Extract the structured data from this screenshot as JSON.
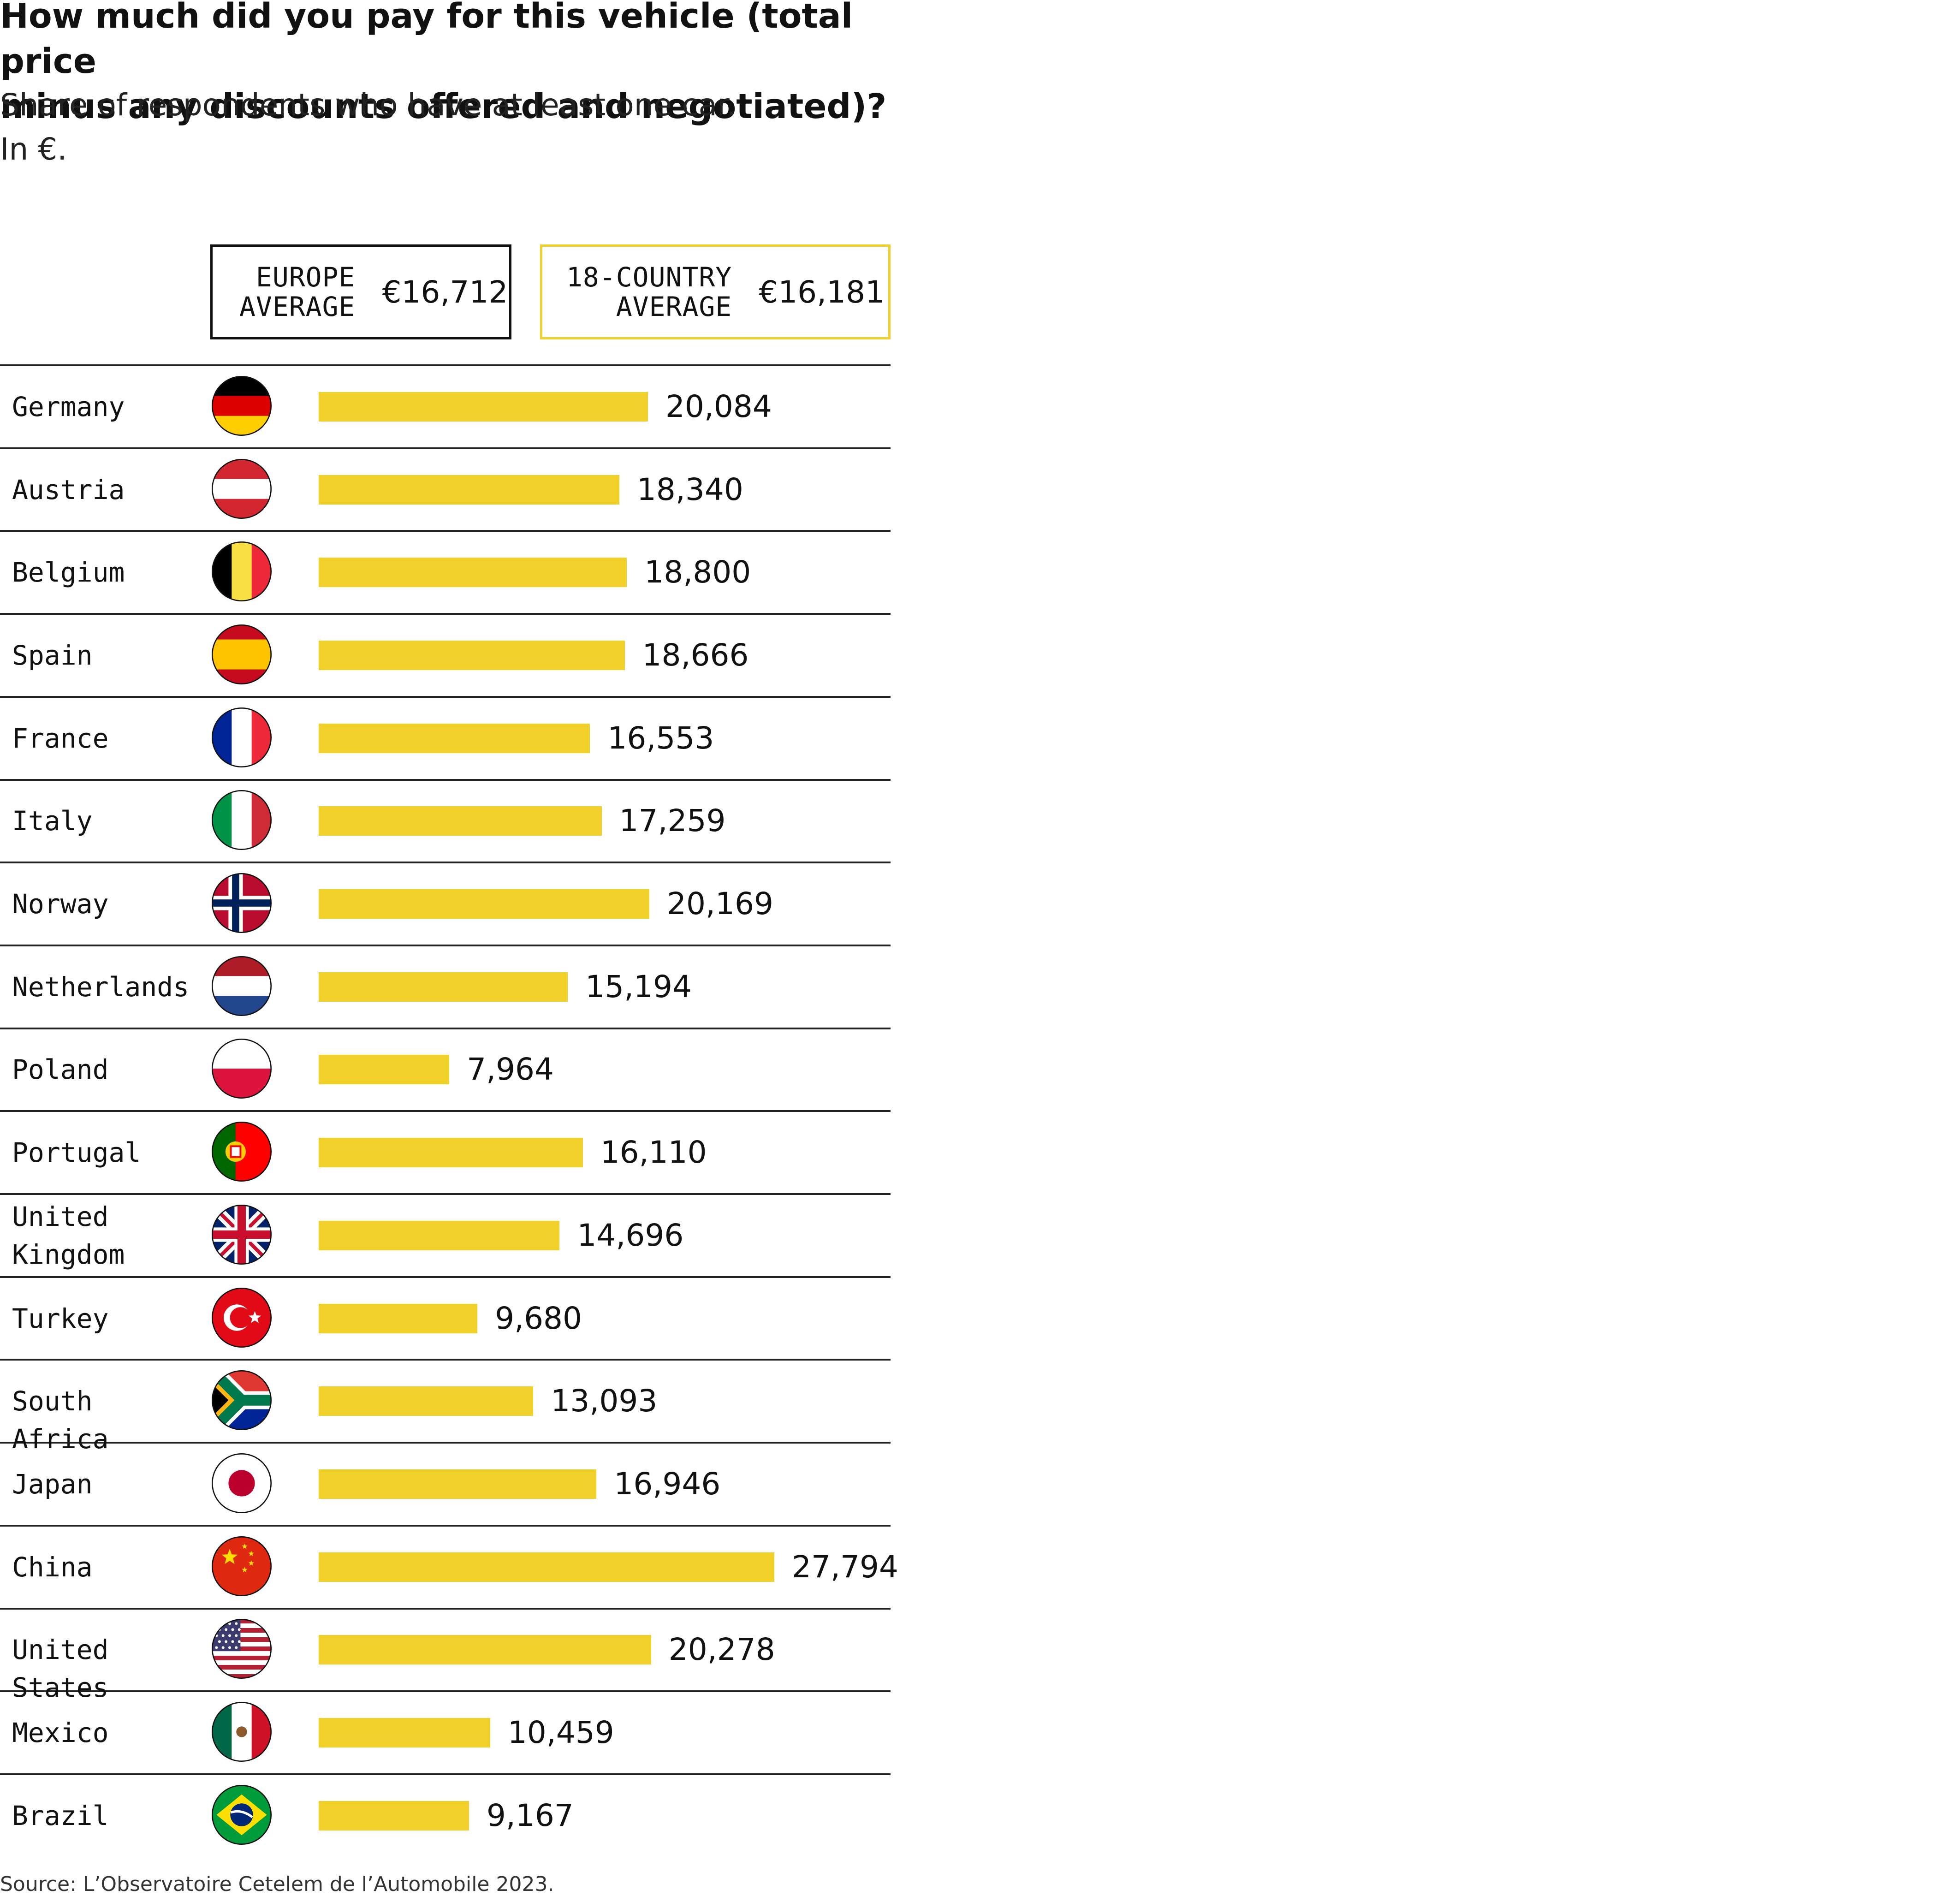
{
  "header": {
    "title_line1": "How much did you pay for this vehicle (total price",
    "title_line2": "minus any discounts offered and negotiated)?",
    "subtitle_line1": "Share of respondents who have at least one car.",
    "subtitle_line2": "In €."
  },
  "averages": {
    "europe_label": "EUROPE\nAVERAGE",
    "europe_value": "€16,712",
    "country18_label": "18-COUNTRY\nAVERAGE",
    "country18_value": "€16,181"
  },
  "colors": {
    "bar": "#f2d02a",
    "text": "#111111",
    "rule": "#222222"
  },
  "chart_data": {
    "type": "bar",
    "orientation": "horizontal",
    "title": "How much did you pay for this vehicle (total price minus any discounts offered and negotiated)?",
    "subtitle": "Share of respondents who have at least one car. In €.",
    "xlabel": "",
    "ylabel": "",
    "xlim": [
      0,
      27794
    ],
    "categories": [
      "Germany",
      "Austria",
      "Belgium",
      "Spain",
      "France",
      "Italy",
      "Norway",
      "Netherlands",
      "Poland",
      "Portugal",
      "United\nKingdom",
      "Turkey",
      "South Africa",
      "Japan",
      "China",
      "United States",
      "Mexico",
      "Brazil"
    ],
    "values": [
      20084,
      18340,
      18800,
      18666,
      16553,
      17259,
      20169,
      15194,
      7964,
      16110,
      14696,
      9680,
      13093,
      16946,
      27794,
      20278,
      10459,
      9167
    ],
    "value_labels": [
      "20,084",
      "18,340",
      "18,800",
      "18,666",
      "16,553",
      "17,259",
      "20,169",
      "15,194",
      "7,964",
      "16,110",
      "14,696",
      "9,680",
      "13,093",
      "16,946",
      "27,794",
      "20,278",
      "10,459",
      "9,167"
    ],
    "flags": [
      "germany-flag-icon",
      "austria-flag-icon",
      "belgium-flag-icon",
      "spain-flag-icon",
      "france-flag-icon",
      "italy-flag-icon",
      "norway-flag-icon",
      "netherlands-flag-icon",
      "poland-flag-icon",
      "portugal-flag-icon",
      "united-kingdom-flag-icon",
      "turkey-flag-icon",
      "south-africa-flag-icon",
      "japan-flag-icon",
      "china-flag-icon",
      "united-states-flag-icon",
      "mexico-flag-icon",
      "brazil-flag-icon"
    ]
  },
  "footer": {
    "source": "Source: L’Observatoire Cetelem de l’Automobile 2023."
  }
}
